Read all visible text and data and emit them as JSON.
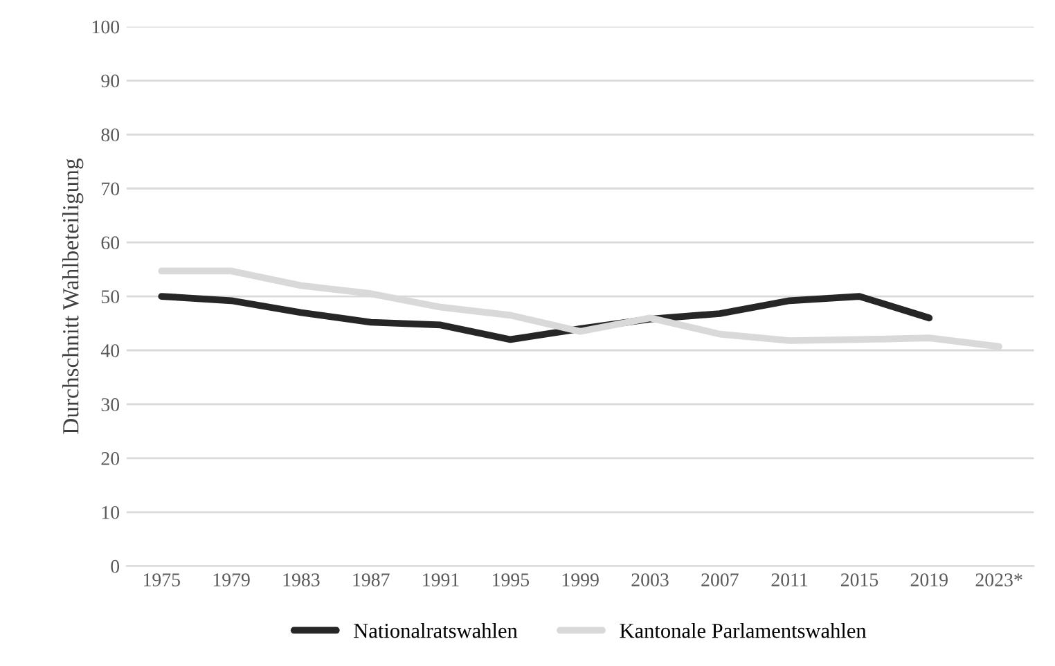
{
  "chart_data": {
    "type": "line",
    "ylabel": "Durchschnitt Wahlbeteiligung",
    "categories": [
      "1975",
      "1979",
      "1983",
      "1987",
      "1991",
      "1995",
      "1999",
      "2003",
      "2007",
      "2011",
      "2015",
      "2019",
      "2023*"
    ],
    "series": [
      {
        "name": "Nationalratswahlen",
        "color": "#262626",
        "values": [
          50,
          49.2,
          47,
          45.2,
          44.7,
          42,
          44,
          45.8,
          46.8,
          49.2,
          50,
          46,
          null
        ]
      },
      {
        "name": "Kantonale Parlamentswahlen",
        "color": "#d9d9d9",
        "values": [
          54.7,
          54.7,
          52,
          50.5,
          48,
          46.5,
          43.5,
          46,
          43,
          41.8,
          42,
          42.3,
          40.7
        ]
      }
    ],
    "ylim": [
      0,
      100
    ],
    "yticks": [
      0,
      10,
      20,
      30,
      40,
      50,
      60,
      70,
      80,
      90,
      100
    ],
    "grid": "y",
    "legend": "bottom",
    "marker": "none",
    "line_style": "solid"
  }
}
